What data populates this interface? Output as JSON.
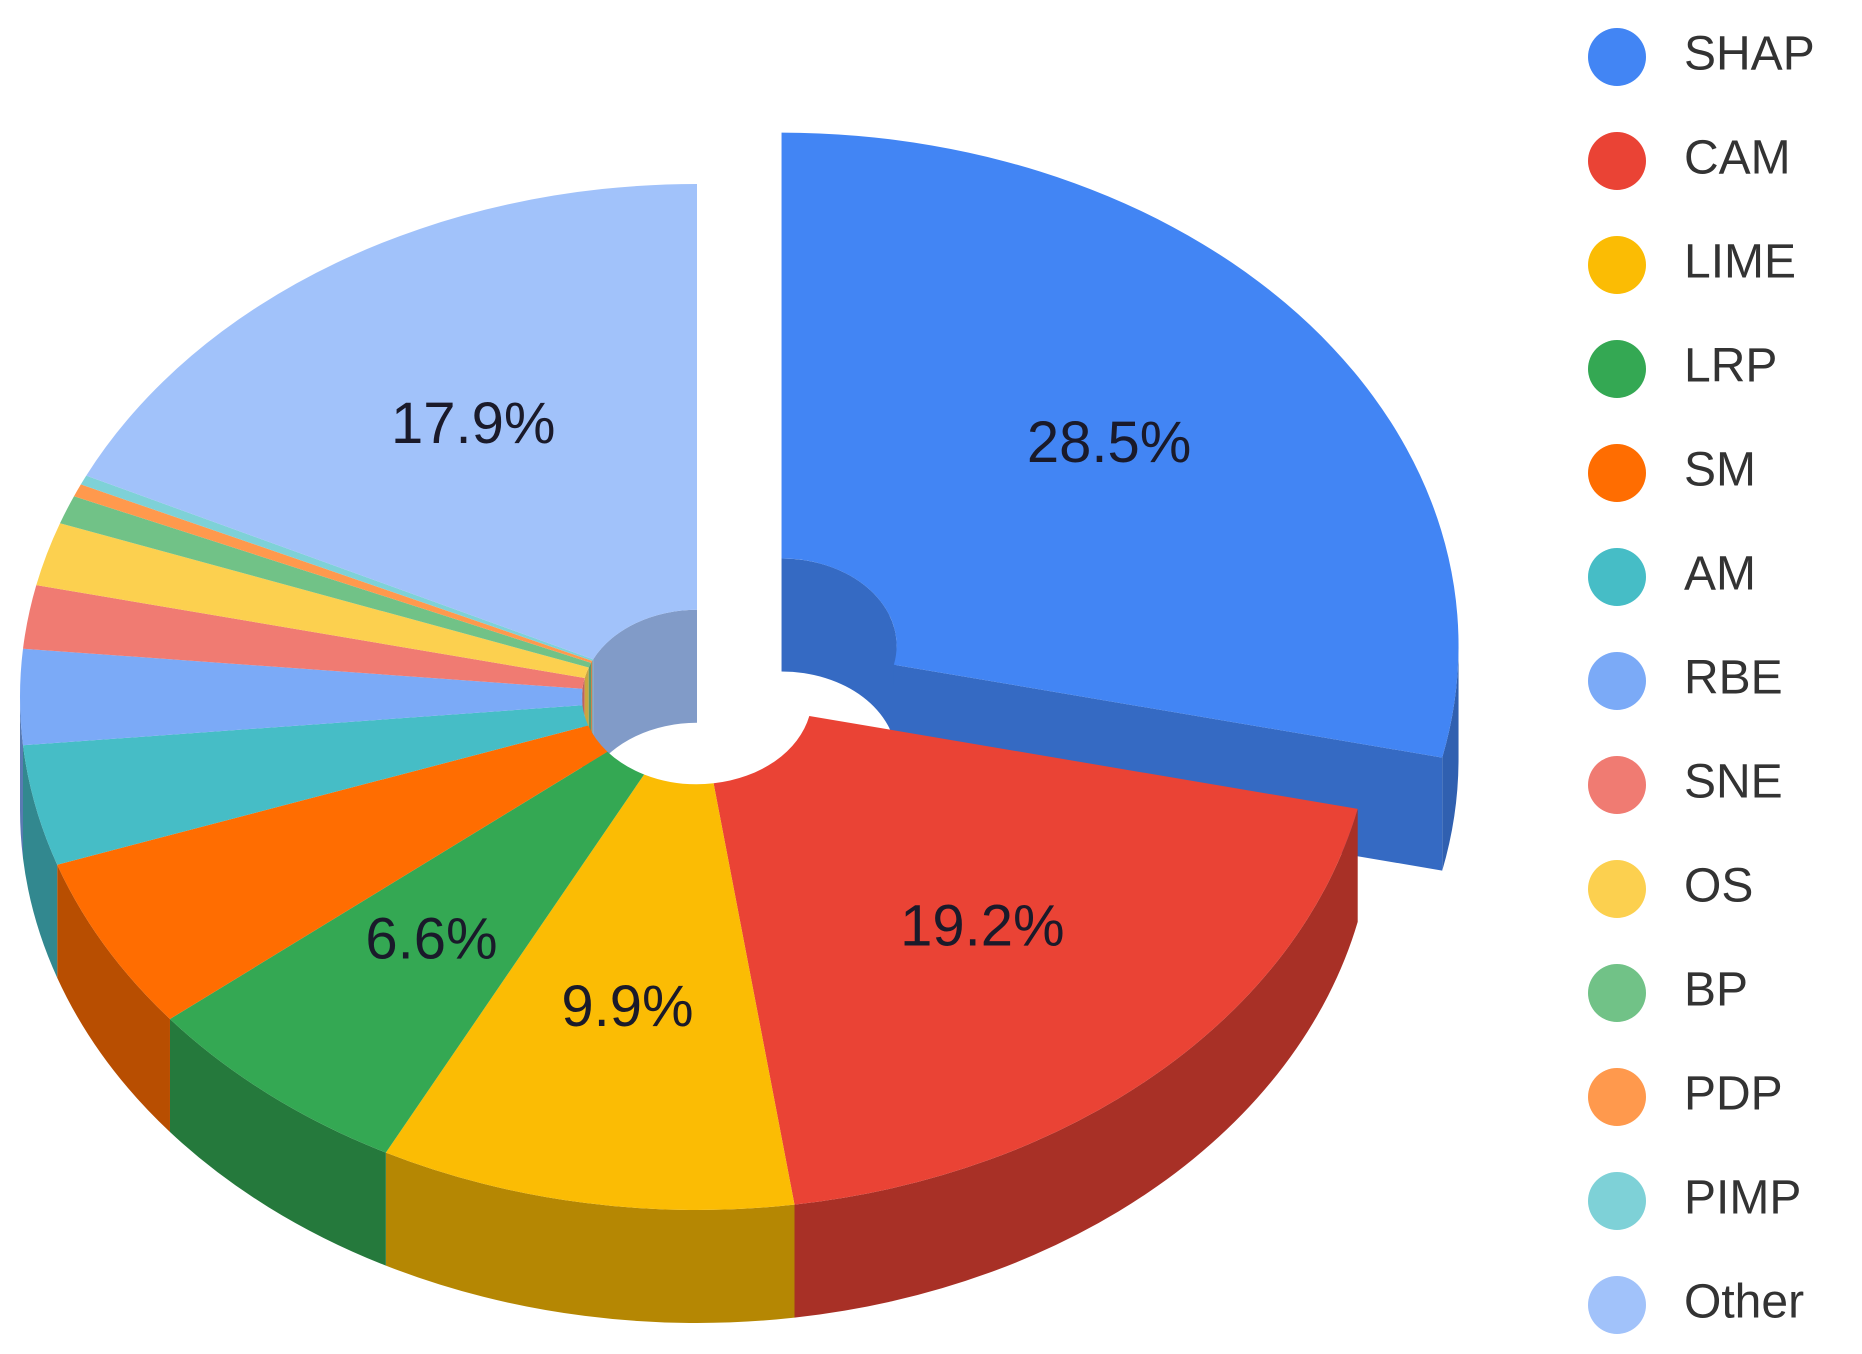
{
  "chart_data": {
    "type": "pie3d",
    "categories": [
      "SHAP",
      "CAM",
      "LIME",
      "LRP",
      "SM",
      "AM",
      "RBE",
      "SNE",
      "OS",
      "BP",
      "PDP",
      "PIMP",
      "Other"
    ],
    "values": [
      28.5,
      19.2,
      9.9,
      6.6,
      5.5,
      3.8,
      3.0,
      2.0,
      2.0,
      0.9,
      0.4,
      0.3,
      17.9
    ],
    "value_labels": [
      "28.5%",
      "19.2%",
      "9.9%",
      "6.6%",
      null,
      null,
      null,
      null,
      null,
      null,
      null,
      null,
      "17.9%"
    ],
    "colors": [
      "#4285f4",
      "#ea4335",
      "#fbbc04",
      "#34a853",
      "#ff6d01",
      "#46bdc6",
      "#7baaf7",
      "#f07b72",
      "#fcd04f",
      "#71c287",
      "#ff994d",
      "#7ed1d7",
      "#a1c2fa"
    ],
    "legend": "right"
  }
}
